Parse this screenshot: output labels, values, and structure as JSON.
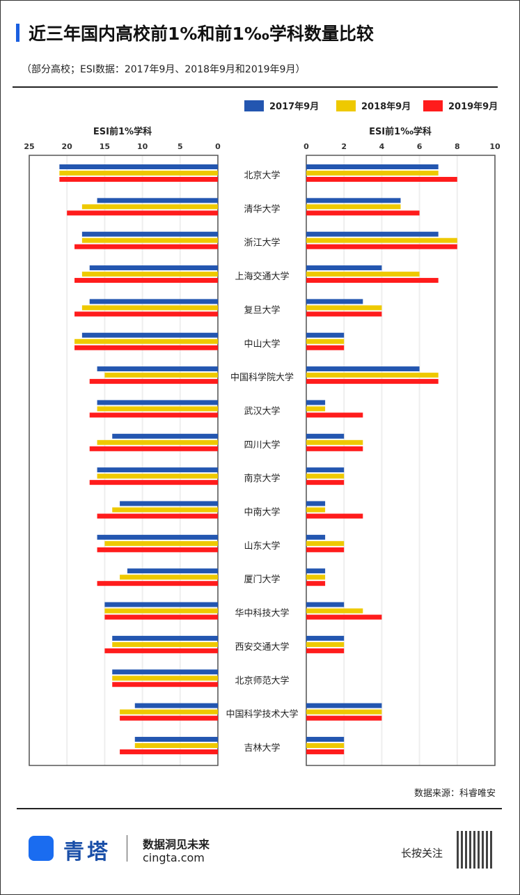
{
  "header": {
    "title": "近三年国内高校前1%和前1‰学科数量比较",
    "subtitle": "（部分高校；ESI数据：2017年9月、2018年9月和2019年9月）"
  },
  "footer": {
    "source": "数据来源：科睿唯安",
    "brand": "青塔",
    "slogan": "数据洞见未来",
    "site": "cingta.com",
    "follow": "长按关注"
  },
  "colors": {
    "2017": "#2356b0",
    "2018": "#eec900",
    "2019": "#ff1c1c"
  },
  "chart_data": [
    {
      "type": "bar",
      "title": "ESI前1%学科",
      "orientation": "horizontal-reversed",
      "xlim": [
        0,
        25
      ],
      "ticks": [
        25,
        20,
        15,
        10,
        5,
        0
      ],
      "grid": true,
      "legend": [
        "2017年9月",
        "2018年9月",
        "2019年9月"
      ],
      "legend_position": "top-right",
      "categories": [
        "北京大学",
        "清华大学",
        "浙江大学",
        "上海交通大学",
        "复旦大学",
        "中山大学",
        "中国科学院大学",
        "武汉大学",
        "四川大学",
        "南京大学",
        "中南大学",
        "山东大学",
        "厦门大学",
        "华中科技大学",
        "西安交通大学",
        "北京师范大学",
        "中国科学技术大学",
        "吉林大学"
      ],
      "series": [
        {
          "name": "2017年9月",
          "values": [
            21,
            16,
            18,
            17,
            17,
            18,
            16,
            16,
            14,
            16,
            13,
            16,
            12,
            15,
            14,
            14,
            11,
            11
          ]
        },
        {
          "name": "2018年9月",
          "values": [
            21,
            18,
            18,
            18,
            18,
            19,
            15,
            16,
            16,
            16,
            14,
            15,
            13,
            15,
            14,
            14,
            13,
            11
          ]
        },
        {
          "name": "2019年9月",
          "values": [
            21,
            20,
            19,
            19,
            19,
            19,
            17,
            17,
            17,
            17,
            16,
            16,
            16,
            15,
            15,
            14,
            13,
            13
          ]
        }
      ]
    },
    {
      "type": "bar",
      "title": "ESI前1‰学科",
      "orientation": "horizontal",
      "xlim": [
        0,
        10
      ],
      "ticks": [
        0,
        2,
        4,
        6,
        8,
        10
      ],
      "grid": true,
      "series": [
        {
          "name": "2017年9月",
          "values": [
            7,
            5,
            7,
            4,
            3,
            2,
            6,
            1,
            2,
            2,
            1,
            1,
            1,
            2,
            2,
            0,
            4,
            2
          ]
        },
        {
          "name": "2018年9月",
          "values": [
            7,
            5,
            8,
            6,
            4,
            2,
            7,
            1,
            3,
            2,
            1,
            2,
            1,
            3,
            2,
            0,
            4,
            2
          ]
        },
        {
          "name": "2019年9月",
          "values": [
            8,
            6,
            8,
            7,
            4,
            2,
            7,
            3,
            3,
            2,
            3,
            2,
            1,
            4,
            2,
            0,
            4,
            2
          ]
        }
      ]
    }
  ]
}
